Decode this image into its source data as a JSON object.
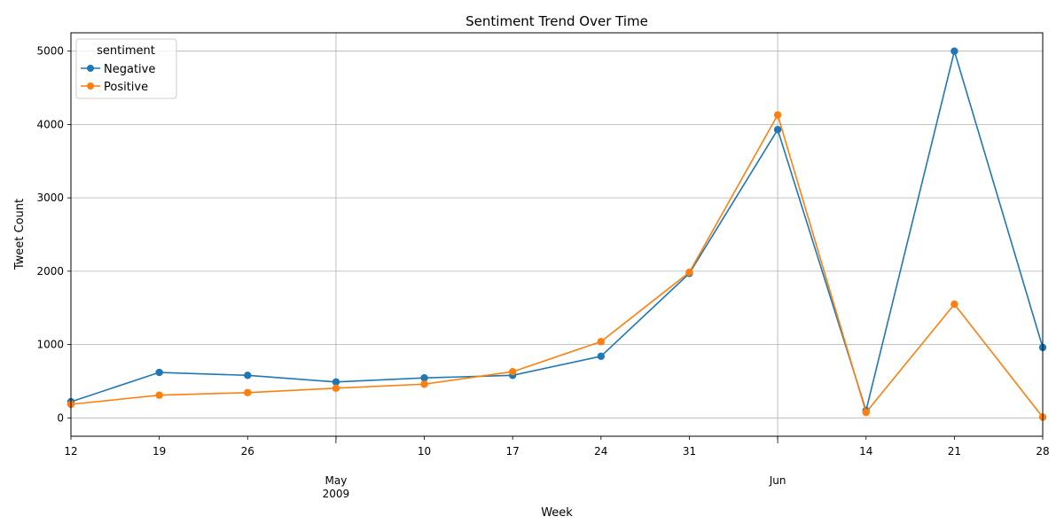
{
  "chart_data": {
    "type": "line",
    "title": "Sentiment Trend Over Time",
    "xlabel": "Week",
    "ylabel": "Tweet Count",
    "x": [
      "2009-04-12",
      "2009-04-19",
      "2009-04-26",
      "2009-05-03",
      "2009-05-10",
      "2009-05-17",
      "2009-05-24",
      "2009-05-31",
      "2009-06-07",
      "2009-06-14",
      "2009-06-21",
      "2009-06-28"
    ],
    "x_tick_labels": [
      {
        "x": "2009-04-12",
        "label": "12"
      },
      {
        "x": "2009-04-19",
        "label": "19"
      },
      {
        "x": "2009-04-26",
        "label": "26"
      },
      {
        "x": "2009-05-03",
        "label": ""
      },
      {
        "x": "2009-05-10",
        "label": "10"
      },
      {
        "x": "2009-05-17",
        "label": "17"
      },
      {
        "x": "2009-05-24",
        "label": "24"
      },
      {
        "x": "2009-05-31",
        "label": "31"
      },
      {
        "x": "2009-06-07",
        "label": ""
      },
      {
        "x": "2009-06-14",
        "label": "14"
      },
      {
        "x": "2009-06-21",
        "label": "21"
      },
      {
        "x": "2009-06-28",
        "label": "28"
      }
    ],
    "x_major_labels": [
      {
        "x": "2009-05-03",
        "lines": [
          "May",
          "2009"
        ]
      },
      {
        "x": "2009-06-07",
        "lines": [
          "Jun"
        ]
      }
    ],
    "y_ticks": [
      0,
      1000,
      2000,
      3000,
      4000,
      5000
    ],
    "ylim": [
      -250,
      5250
    ],
    "grid": true,
    "legend": {
      "title": "sentiment",
      "placement": "top-left"
    },
    "series": [
      {
        "name": "Negative",
        "color": "#1f77b4",
        "values": [
          220,
          620,
          580,
          490,
          545,
          580,
          840,
          1970,
          3930,
          100,
          5000,
          960
        ]
      },
      {
        "name": "Positive",
        "color": "#ff7f0e",
        "values": [
          185,
          310,
          345,
          405,
          460,
          630,
          1040,
          1985,
          4130,
          75,
          1550,
          10
        ]
      }
    ]
  }
}
